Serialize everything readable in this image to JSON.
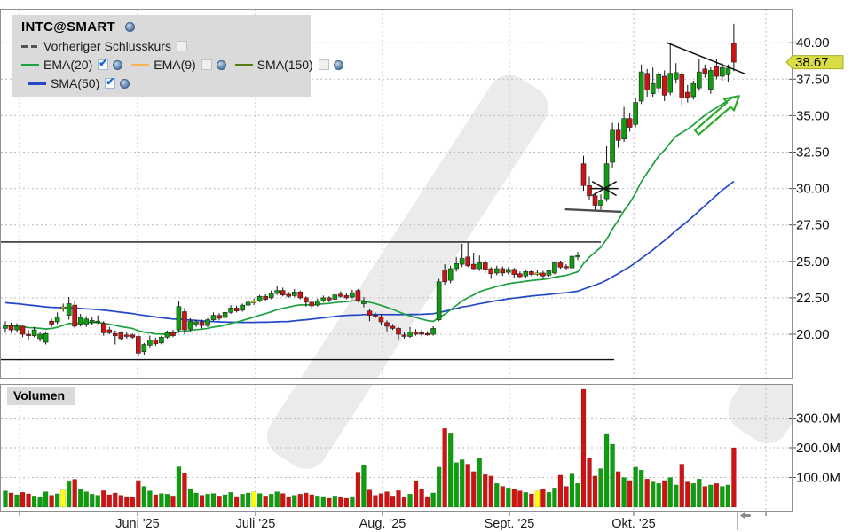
{
  "legend": {
    "title": "INTC@SMART",
    "rows": [
      [
        {
          "swatch": "dash",
          "color": "#555555",
          "label": "Vorheriger Schlusskurs",
          "checkbox": "unchecked",
          "globe": false
        }
      ],
      [
        {
          "swatch": "line",
          "color": "#1fa03f",
          "label": "EMA(20)",
          "checkbox": "checked",
          "globe": true
        },
        {
          "swatch": "line",
          "color": "#f2b457",
          "label": "EMA(9)",
          "checkbox": "unchecked",
          "globe": true
        },
        {
          "swatch": "line",
          "color": "#5a7a12",
          "label": "SMA(150)",
          "checkbox": "unchecked",
          "globe": true
        }
      ],
      [
        {
          "swatch": "line",
          "color": "#2247c7",
          "label": "SMA(50)",
          "checkbox": "checked",
          "globe": true
        }
      ]
    ]
  },
  "volume_panel": {
    "label": "Volumen"
  },
  "colors": {
    "candle_up": "#0c9e0c",
    "candle_down": "#cf1212",
    "candle_neutral": "#ffff00",
    "grid": "#bdbdbd",
    "border": "#8f8f8f",
    "watermark": "#ebebeb",
    "annotation": "#111111",
    "annotation_soft": "#4d4d4d",
    "arrow": "#2faa2f",
    "tag_bg": "#d9de44",
    "tag_stroke": "#a9ae2b",
    "axis_text": "#111111",
    "marker": "#8a8a8a"
  },
  "chart_data": {
    "type": "candlestick",
    "title": "INTC@SMART",
    "last_price": 38.67,
    "last_price_label": "38.67",
    "price_axis": {
      "ticks": [
        {
          "value": 40.0,
          "label": "40.00"
        },
        {
          "value": 37.5,
          "label": "37.50"
        },
        {
          "value": 35.0,
          "label": "35.00"
        },
        {
          "value": 32.5,
          "label": "32.50"
        },
        {
          "value": 30.0,
          "label": "30.00"
        },
        {
          "value": 27.5,
          "label": "27.50"
        },
        {
          "value": 25.0,
          "label": "25.00"
        },
        {
          "value": 22.5,
          "label": "22.50"
        },
        {
          "value": 20.0,
          "label": "20.00"
        }
      ],
      "visible_range": [
        17.0,
        42.3
      ]
    },
    "volume_axis": {
      "ticks": [
        {
          "value": 300,
          "label": "300.0M"
        },
        {
          "value": 200,
          "label": "200.0M"
        },
        {
          "value": 100,
          "label": "100.0M"
        }
      ],
      "unit": "millions of shares"
    },
    "x_axis": {
      "months": [
        {
          "i": 2.46,
          "label": ""
        },
        {
          "i": 22.87,
          "label": "Juni '25"
        },
        {
          "i": 43.28,
          "label": "Juli '25"
        },
        {
          "i": 65.23,
          "label": "Aug. '25"
        },
        {
          "i": 87.18,
          "label": "Sept. '25"
        },
        {
          "i": 108.67,
          "label": "Okt. '25"
        },
        {
          "i": 131.55,
          "label": ""
        }
      ],
      "end_marker_i": 126.6
    },
    "indicators": [
      {
        "name": "EMA(20)",
        "type": "ema",
        "period": 20,
        "visible": true,
        "color": "#1fa03f"
      },
      {
        "name": "EMA(9)",
        "type": "ema",
        "period": 9,
        "visible": false,
        "color": "#f2b457"
      },
      {
        "name": "SMA(150)",
        "type": "sma",
        "period": 150,
        "visible": false,
        "color": "#5a7a12"
      },
      {
        "name": "SMA(50)",
        "type": "sma",
        "period": 50,
        "visible": true,
        "color": "#2247c7",
        "seed": 22.2
      }
    ],
    "yellow_indices": [
      10,
      43,
      92
    ],
    "candles": [
      [
        20.4,
        20.9,
        20.1,
        20.6,
        55
      ],
      [
        20.6,
        20.8,
        20.1,
        20.3,
        48
      ],
      [
        20.3,
        20.75,
        20.1,
        20.55,
        42
      ],
      [
        20.55,
        20.65,
        19.8,
        20.0,
        50
      ],
      [
        20.0,
        20.3,
        19.6,
        19.9,
        45
      ],
      [
        19.9,
        20.5,
        19.8,
        20.3,
        38
      ],
      [
        19.7,
        20.15,
        19.5,
        20.0,
        35
      ],
      [
        19.45,
        20.15,
        19.3,
        20.05,
        52
      ],
      [
        20.9,
        21.05,
        20.5,
        20.7,
        40
      ],
      [
        20.85,
        21.5,
        20.7,
        21.2,
        45
      ],
      [
        21.85,
        22.1,
        21.55,
        21.88,
        58
      ],
      [
        21.3,
        22.55,
        21.0,
        22.1,
        86
      ],
      [
        22.0,
        22.3,
        20.4,
        20.55,
        94
      ],
      [
        20.7,
        21.4,
        20.55,
        21.15,
        60
      ],
      [
        20.7,
        21.25,
        20.5,
        21.05,
        52
      ],
      [
        20.8,
        21.2,
        20.65,
        20.95,
        44
      ],
      [
        20.8,
        21.3,
        20.7,
        20.9,
        40
      ],
      [
        20.75,
        20.9,
        19.9,
        20.1,
        56
      ],
      [
        20.3,
        20.5,
        20.0,
        20.1,
        42
      ],
      [
        20.05,
        20.25,
        19.3,
        19.9,
        48
      ],
      [
        20.1,
        20.2,
        19.6,
        19.7,
        40
      ],
      [
        19.95,
        20.15,
        19.7,
        19.85,
        36
      ],
      [
        19.95,
        20.05,
        19.7,
        19.8,
        34
      ],
      [
        19.85,
        19.95,
        18.45,
        18.7,
        90
      ],
      [
        18.8,
        19.4,
        18.6,
        19.3,
        70
      ],
      [
        19.25,
        19.9,
        19.1,
        19.6,
        55
      ],
      [
        19.6,
        19.75,
        19.2,
        19.35,
        42
      ],
      [
        19.4,
        19.9,
        19.3,
        19.8,
        46
      ],
      [
        19.8,
        20.25,
        19.7,
        20.1,
        44
      ],
      [
        20.1,
        20.3,
        19.8,
        19.9,
        38
      ],
      [
        20.3,
        22.3,
        20.1,
        21.9,
        136
      ],
      [
        21.55,
        21.8,
        20.0,
        20.3,
        115
      ],
      [
        20.35,
        21.1,
        20.2,
        20.9,
        62
      ],
      [
        20.7,
        21.0,
        20.5,
        20.85,
        48
      ],
      [
        20.85,
        21.0,
        20.4,
        20.6,
        40
      ],
      [
        20.6,
        21.1,
        20.5,
        21.0,
        44
      ],
      [
        21.0,
        21.5,
        20.9,
        21.3,
        46
      ],
      [
        21.3,
        21.45,
        20.95,
        21.1,
        38
      ],
      [
        21.15,
        21.6,
        21.05,
        21.5,
        42
      ],
      [
        21.5,
        22.0,
        21.4,
        21.8,
        50
      ],
      [
        21.8,
        21.95,
        21.5,
        21.6,
        36
      ],
      [
        21.65,
        22.1,
        21.55,
        22.0,
        44
      ],
      [
        22.0,
        22.35,
        21.9,
        22.2,
        48
      ],
      [
        22.2,
        22.45,
        22.0,
        22.25,
        52
      ],
      [
        22.3,
        22.7,
        22.2,
        22.6,
        46
      ],
      [
        22.6,
        22.75,
        22.3,
        22.4,
        38
      ],
      [
        22.5,
        23.0,
        22.4,
        22.8,
        44
      ],
      [
        22.8,
        23.35,
        22.7,
        23.0,
        52
      ],
      [
        23.0,
        23.2,
        22.6,
        22.7,
        46
      ],
      [
        22.75,
        22.9,
        22.5,
        22.6,
        34
      ],
      [
        22.65,
        23.1,
        22.55,
        22.9,
        40
      ],
      [
        22.9,
        23.0,
        22.4,
        22.5,
        44
      ],
      [
        22.5,
        22.6,
        21.9,
        22.2,
        48
      ],
      [
        22.2,
        22.35,
        21.7,
        21.95,
        42
      ],
      [
        22.0,
        22.45,
        21.9,
        22.3,
        38
      ],
      [
        22.3,
        22.65,
        22.2,
        22.5,
        36
      ],
      [
        22.5,
        22.6,
        22.2,
        22.35,
        30
      ],
      [
        22.4,
        22.9,
        22.3,
        22.7,
        38
      ],
      [
        22.75,
        22.95,
        22.5,
        22.6,
        34
      ],
      [
        22.65,
        22.8,
        22.4,
        22.5,
        30
      ],
      [
        22.55,
        23.05,
        22.45,
        22.85,
        36
      ],
      [
        23.0,
        23.1,
        22.2,
        22.3,
        118
      ],
      [
        22.1,
        22.55,
        21.85,
        22.25,
        140
      ],
      [
        21.6,
        21.75,
        20.9,
        21.3,
        58
      ],
      [
        21.3,
        21.5,
        21.1,
        21.2,
        40
      ],
      [
        21.2,
        21.35,
        20.6,
        20.85,
        46
      ],
      [
        20.8,
        20.95,
        20.2,
        20.55,
        52
      ],
      [
        20.55,
        20.7,
        20.3,
        20.4,
        38
      ],
      [
        20.4,
        20.5,
        19.65,
        20.0,
        56
      ],
      [
        19.95,
        20.15,
        19.7,
        19.85,
        34
      ],
      [
        19.85,
        20.5,
        19.75,
        20.15,
        44
      ],
      [
        20.15,
        20.35,
        19.9,
        20.0,
        88
      ],
      [
        20.1,
        20.3,
        19.85,
        20.0,
        60
      ],
      [
        20.05,
        20.2,
        19.9,
        19.95,
        36
      ],
      [
        20.0,
        20.55,
        19.9,
        20.4,
        48
      ],
      [
        21.0,
        23.8,
        20.9,
        23.6,
        135
      ],
      [
        24.4,
        24.8,
        23.4,
        23.6,
        265
      ],
      [
        23.7,
        24.7,
        23.5,
        24.5,
        250
      ],
      [
        24.5,
        25.3,
        24.3,
        24.85,
        150
      ],
      [
        24.8,
        26.2,
        24.6,
        25.2,
        160
      ],
      [
        25.3,
        26.3,
        24.6,
        24.7,
        145
      ],
      [
        24.8,
        25.6,
        24.4,
        24.5,
        120
      ],
      [
        24.5,
        25.4,
        24.35,
        24.9,
        165
      ],
      [
        24.9,
        25.1,
        24.2,
        24.4,
        110
      ],
      [
        24.5,
        24.6,
        23.8,
        24.15,
        105
      ],
      [
        24.2,
        24.7,
        24.05,
        24.5,
        80
      ],
      [
        24.5,
        24.65,
        24.0,
        24.2,
        70
      ],
      [
        24.25,
        24.6,
        24.1,
        24.45,
        65
      ],
      [
        24.45,
        24.55,
        23.9,
        24.1,
        60
      ],
      [
        24.15,
        24.3,
        23.9,
        23.95,
        55
      ],
      [
        24.0,
        24.45,
        23.9,
        24.3,
        50
      ],
      [
        24.3,
        24.4,
        24.0,
        24.1,
        45
      ],
      [
        24.15,
        24.4,
        24.0,
        24.2,
        55
      ],
      [
        24.2,
        24.35,
        23.8,
        24.0,
        60
      ],
      [
        24.05,
        24.45,
        23.95,
        24.35,
        50
      ],
      [
        24.2,
        25.0,
        24.1,
        24.9,
        65
      ],
      [
        24.9,
        25.05,
        24.5,
        24.6,
        108
      ],
      [
        24.65,
        24.8,
        24.45,
        24.55,
        70
      ],
      [
        24.55,
        25.9,
        24.5,
        25.35,
        112
      ],
      [
        25.3,
        25.65,
        25.1,
        25.4,
        80
      ],
      [
        31.7,
        32.25,
        29.85,
        30.2,
        397
      ],
      [
        30.2,
        30.8,
        29.2,
        29.5,
        165
      ],
      [
        29.5,
        29.7,
        28.5,
        28.85,
        105
      ],
      [
        28.85,
        29.6,
        28.55,
        29.2,
        130
      ],
      [
        29.3,
        32.9,
        29.1,
        31.7,
        248
      ],
      [
        31.8,
        34.5,
        31.4,
        34.0,
        212
      ],
      [
        34.0,
        34.5,
        32.8,
        33.3,
        120
      ],
      [
        33.4,
        35.6,
        33.2,
        34.8,
        100
      ],
      [
        34.8,
        35.2,
        33.9,
        34.2,
        90
      ],
      [
        34.4,
        36.2,
        34.2,
        35.9,
        135
      ],
      [
        36.0,
        38.5,
        35.8,
        38.0,
        125
      ],
      [
        37.9,
        38.2,
        36.3,
        36.75,
        95
      ],
      [
        36.5,
        38.3,
        36.3,
        37.2,
        85
      ],
      [
        36.9,
        38.0,
        36.6,
        37.8,
        80
      ],
      [
        37.7,
        38.1,
        36.0,
        36.4,
        90
      ],
      [
        36.6,
        40.0,
        36.4,
        37.9,
        100
      ],
      [
        37.5,
        38.6,
        37.2,
        37.95,
        75
      ],
      [
        37.8,
        38.0,
        35.7,
        36.2,
        145
      ],
      [
        36.6,
        37.1,
        35.9,
        36.25,
        85
      ],
      [
        36.3,
        37.4,
        36.1,
        37.2,
        80
      ],
      [
        36.9,
        38.9,
        36.7,
        38.0,
        95
      ],
      [
        38.2,
        38.5,
        37.6,
        37.9,
        70
      ],
      [
        36.8,
        38.3,
        36.5,
        38.1,
        75
      ],
      [
        38.35,
        38.9,
        37.5,
        37.7,
        80
      ],
      [
        37.7,
        38.6,
        37.4,
        38.3,
        70
      ],
      [
        37.8,
        38.5,
        37.3,
        38.25,
        75
      ],
      [
        39.95,
        41.3,
        38.05,
        38.67,
        200
      ]
    ],
    "annotations": [
      {
        "type": "hline",
        "p": 26.33,
        "i1": -0.9,
        "i2": 103.0,
        "color": "annotation",
        "w": 1.4,
        "name": "resistance-line"
      },
      {
        "type": "hline",
        "p": 18.26,
        "i1": -0.9,
        "i2": 105.3,
        "color": "annotation",
        "w": 1.4,
        "name": "support-line"
      },
      {
        "type": "segment",
        "i1": 96.8,
        "p1": 28.57,
        "i2": 106.6,
        "p2": 28.4,
        "color": "annotation_soft",
        "w": 2.4,
        "name": "breakout-base-line"
      },
      {
        "type": "segment",
        "i1": 114.3,
        "p1": 40.02,
        "i2": 127.9,
        "p2": 37.87,
        "color": "annotation",
        "w": 1.5,
        "name": "descending-trendline"
      },
      {
        "type": "cross",
        "i": 103.6,
        "p": 30.0,
        "di": 2.1,
        "dp": 0.48,
        "color": "annotation",
        "w": 1.5,
        "name": "x-mark-annotation"
      },
      {
        "type": "arrow",
        "i1": 119.6,
        "p1": 33.85,
        "i2": 126.9,
        "p2": 36.35,
        "color": "arrow",
        "w": 2.2,
        "name": "bullish-arrow-annotation"
      }
    ],
    "layout": {
      "grid": true,
      "legend_position": "top-left",
      "panels": [
        "price",
        "volume"
      ]
    }
  }
}
